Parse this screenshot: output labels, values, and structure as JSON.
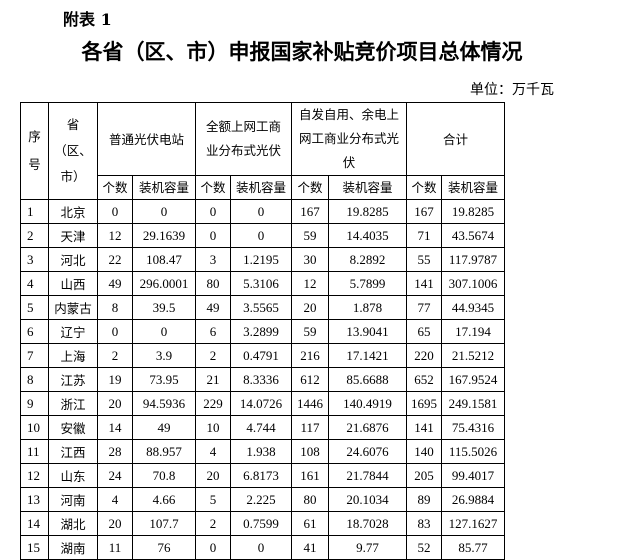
{
  "label": "附表 1",
  "title": "各省（区、市）申报国家补贴竞价项目总体情况",
  "unit": "单位：万千瓦",
  "header": {
    "seq": "序号",
    "province": "省（区、市）",
    "groups": [
      "普通光伏电站",
      "全额上网工商业分布式光伏",
      "自发自用、余电上网工商业分布式光伏",
      "合计"
    ],
    "count": "个数",
    "capacity": "装机容量"
  },
  "rows": [
    [
      "1",
      "北京",
      "0",
      "0",
      "0",
      "0",
      "167",
      "19.8285",
      "167",
      "19.8285"
    ],
    [
      "2",
      "天津",
      "12",
      "29.1639",
      "0",
      "0",
      "59",
      "14.4035",
      "71",
      "43.5674"
    ],
    [
      "3",
      "河北",
      "22",
      "108.47",
      "3",
      "1.2195",
      "30",
      "8.2892",
      "55",
      "117.9787"
    ],
    [
      "4",
      "山西",
      "49",
      "296.0001",
      "80",
      "5.3106",
      "12",
      "5.7899",
      "141",
      "307.1006"
    ],
    [
      "5",
      "内蒙古",
      "8",
      "39.5",
      "49",
      "3.5565",
      "20",
      "1.878",
      "77",
      "44.9345"
    ],
    [
      "6",
      "辽宁",
      "0",
      "0",
      "6",
      "3.2899",
      "59",
      "13.9041",
      "65",
      "17.194"
    ],
    [
      "7",
      "上海",
      "2",
      "3.9",
      "2",
      "0.4791",
      "216",
      "17.1421",
      "220",
      "21.5212"
    ],
    [
      "8",
      "江苏",
      "19",
      "73.95",
      "21",
      "8.3336",
      "612",
      "85.6688",
      "652",
      "167.9524"
    ],
    [
      "9",
      "浙江",
      "20",
      "94.5936",
      "229",
      "14.0726",
      "1446",
      "140.4919",
      "1695",
      "249.1581"
    ],
    [
      "10",
      "安徽",
      "14",
      "49",
      "10",
      "4.744",
      "117",
      "21.6876",
      "141",
      "75.4316"
    ],
    [
      "11",
      "江西",
      "28",
      "88.957",
      "4",
      "1.938",
      "108",
      "24.6076",
      "140",
      "115.5026"
    ],
    [
      "12",
      "山东",
      "24",
      "70.8",
      "20",
      "6.8173",
      "161",
      "21.7844",
      "205",
      "99.4017"
    ],
    [
      "13",
      "河南",
      "4",
      "4.66",
      "5",
      "2.225",
      "80",
      "20.1034",
      "89",
      "26.9884"
    ],
    [
      "14",
      "湖北",
      "20",
      "107.7",
      "2",
      "0.7599",
      "61",
      "18.7028",
      "83",
      "127.1627"
    ],
    [
      "15",
      "湖南",
      "11",
      "76",
      "0",
      "0",
      "41",
      "9.77",
      "52",
      "85.77"
    ]
  ]
}
